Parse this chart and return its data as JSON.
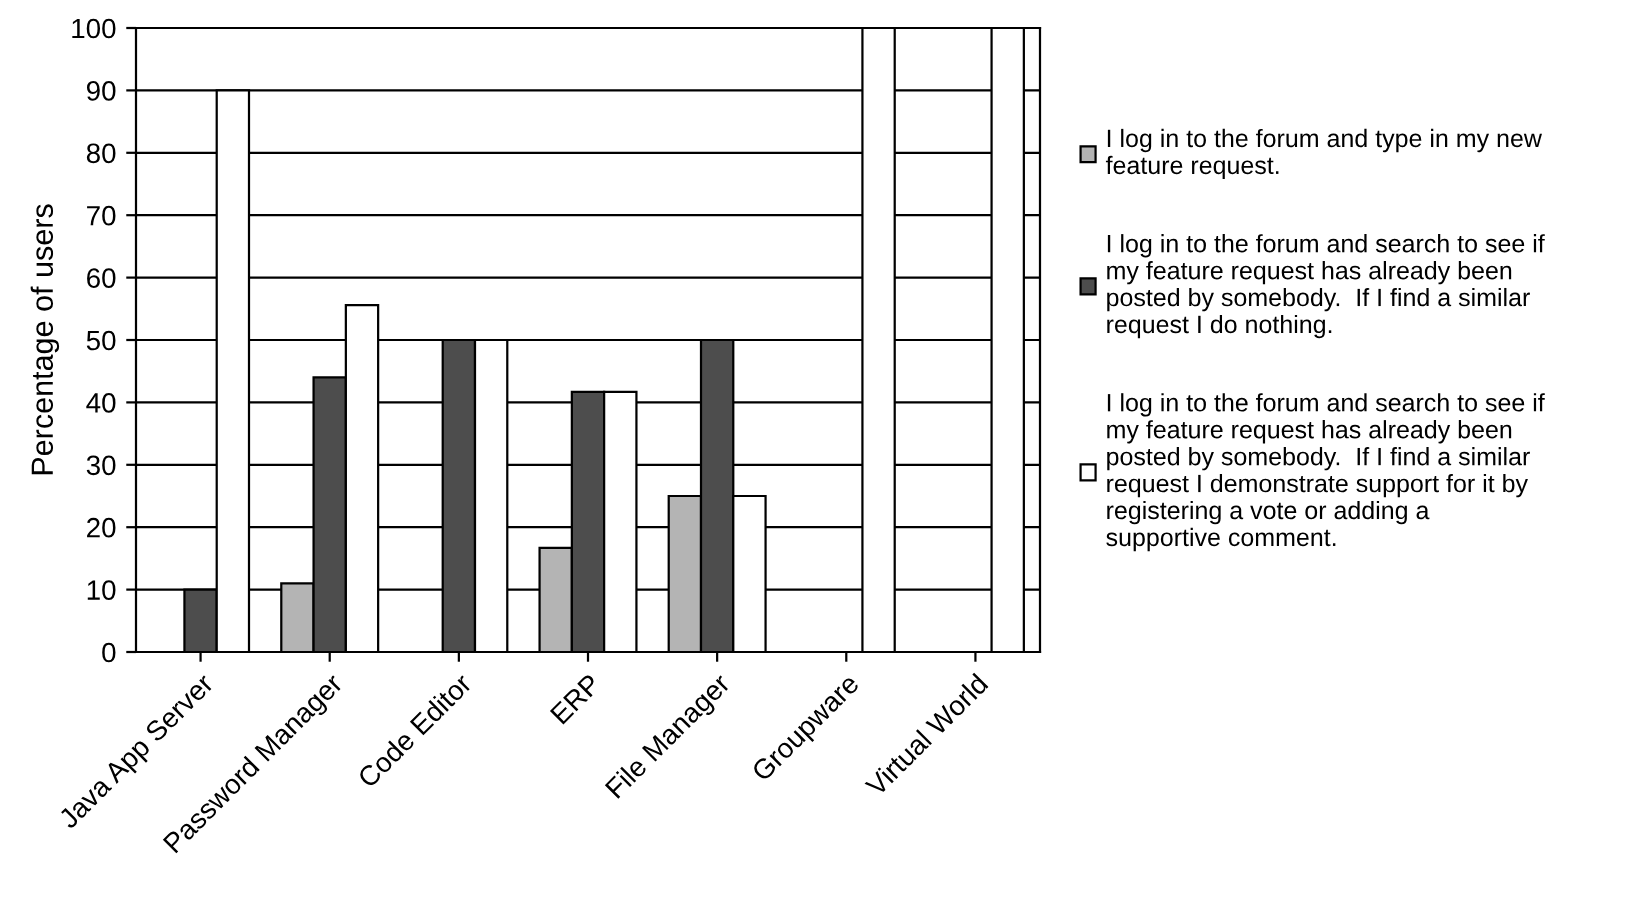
{
  "chart_data": {
    "type": "bar",
    "ylabel": "Percentage of users",
    "categories": [
      "Java App Server",
      "Password Manager",
      "Code Editor",
      "ERP",
      "File Manager",
      "Groupware",
      "Virtual World"
    ],
    "series": [
      {
        "name": "I log in to the forum and type in my new\nfeature request.",
        "color": "#b4b4b4",
        "values": [
          0,
          11,
          0,
          16.7,
          25,
          0,
          0
        ]
      },
      {
        "name": "I log in to the forum and search to see if\nmy feature request has already been\nposted by somebody.  If I find a similar\nrequest I do nothing.",
        "color": "#4d4d4d",
        "values": [
          10,
          44,
          50,
          41.7,
          50,
          0,
          0
        ]
      },
      {
        "name": "I log in to the forum and search to see if\nmy feature request has already been\nposted by somebody.  If I find a similar\nrequest I demonstrate support for it by\nregistering a vote or adding a\nsupportive comment.",
        "color": "#ffffff",
        "values": [
          90,
          55.6,
          50,
          41.7,
          25,
          100,
          100
        ]
      }
    ],
    "ylim": [
      0,
      100
    ],
    "yticks": [
      0,
      10,
      20,
      30,
      40,
      50,
      60,
      70,
      80,
      90,
      100
    ],
    "grid": "y",
    "legend": "right"
  }
}
